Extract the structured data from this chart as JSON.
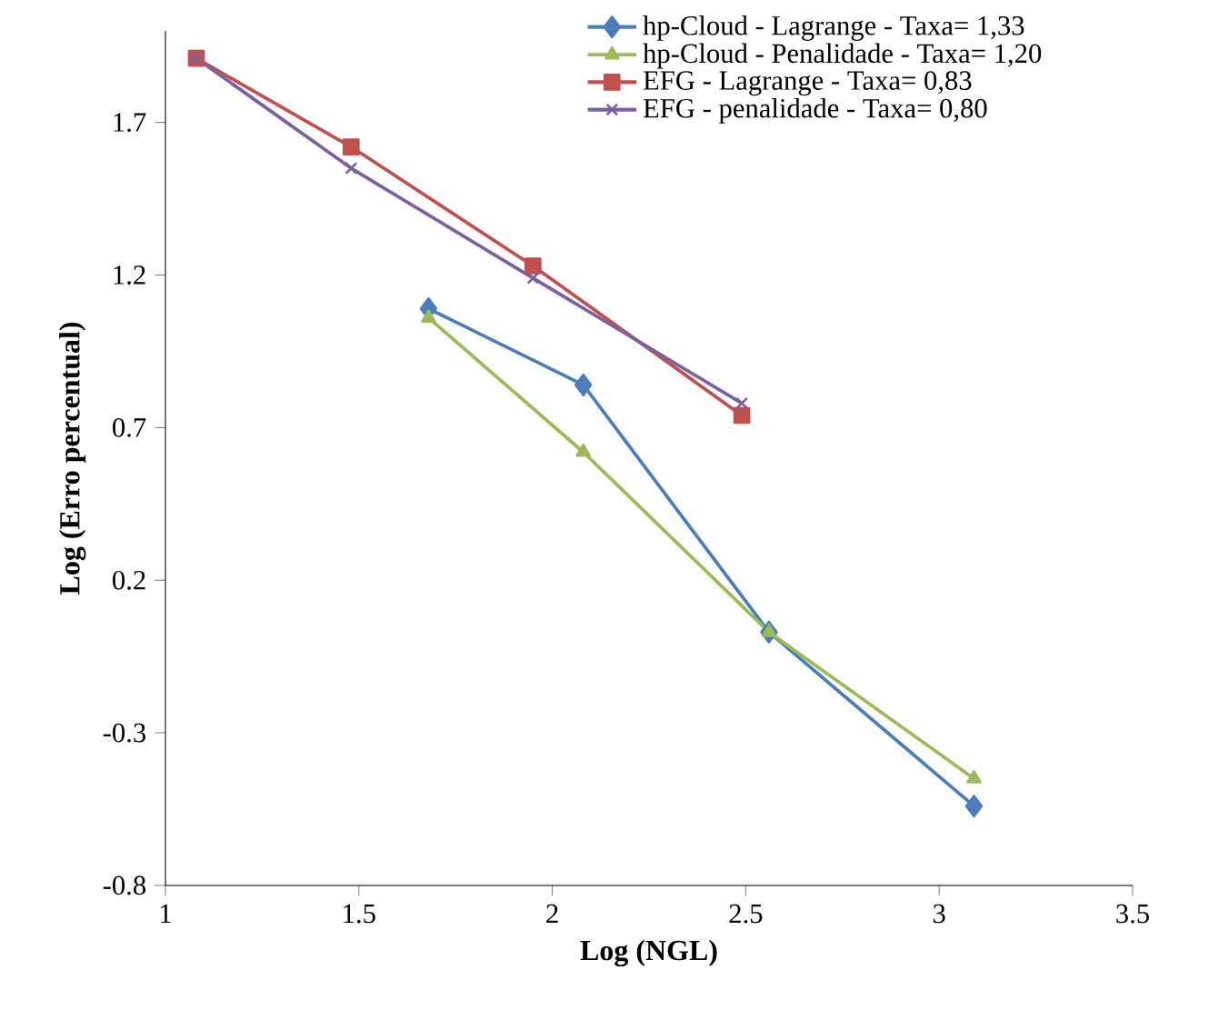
{
  "chart_data": {
    "type": "line",
    "xlabel": "Log (NGL)",
    "ylabel": "Log (Erro percentual)",
    "xlim": [
      1,
      3.5
    ],
    "ylim": [
      -0.8,
      2.0
    ],
    "xticks": [
      1,
      1.5,
      2,
      2.5,
      3,
      3.5
    ],
    "yticks": [
      -0.8,
      -0.3,
      0.2,
      0.7,
      1.2,
      1.7
    ],
    "grid": false,
    "legend": "top right",
    "line_style": "solid",
    "series": [
      {
        "name": "hp-Cloud - Lagrange - Taxa= 1,33",
        "color": "#4a7ebb",
        "marker": "diamond",
        "x": [
          1.68,
          2.08,
          2.56,
          3.09
        ],
        "values": [
          1.09,
          0.84,
          0.03,
          -0.54
        ]
      },
      {
        "name": "hp-Cloud - Penalidade - Taxa= 1,20",
        "color": "#9bbb59",
        "marker": "triangle",
        "x": [
          1.68,
          2.08,
          2.56,
          3.09
        ],
        "values": [
          1.06,
          0.62,
          0.03,
          -0.45
        ]
      },
      {
        "name": "EFG - Lagrange - Taxa= 0,83",
        "color": "#c0504d",
        "marker": "square",
        "x": [
          1.08,
          1.48,
          1.95,
          2.49
        ],
        "values": [
          1.91,
          1.62,
          1.23,
          0.74
        ]
      },
      {
        "name": "EFG - penalidade - Taxa= 0,80",
        "color": "#7d60a0",
        "marker": "cross",
        "x": [
          1.08,
          1.48,
          1.95,
          2.49
        ],
        "values": [
          1.91,
          1.55,
          1.19,
          0.78
        ]
      }
    ]
  }
}
